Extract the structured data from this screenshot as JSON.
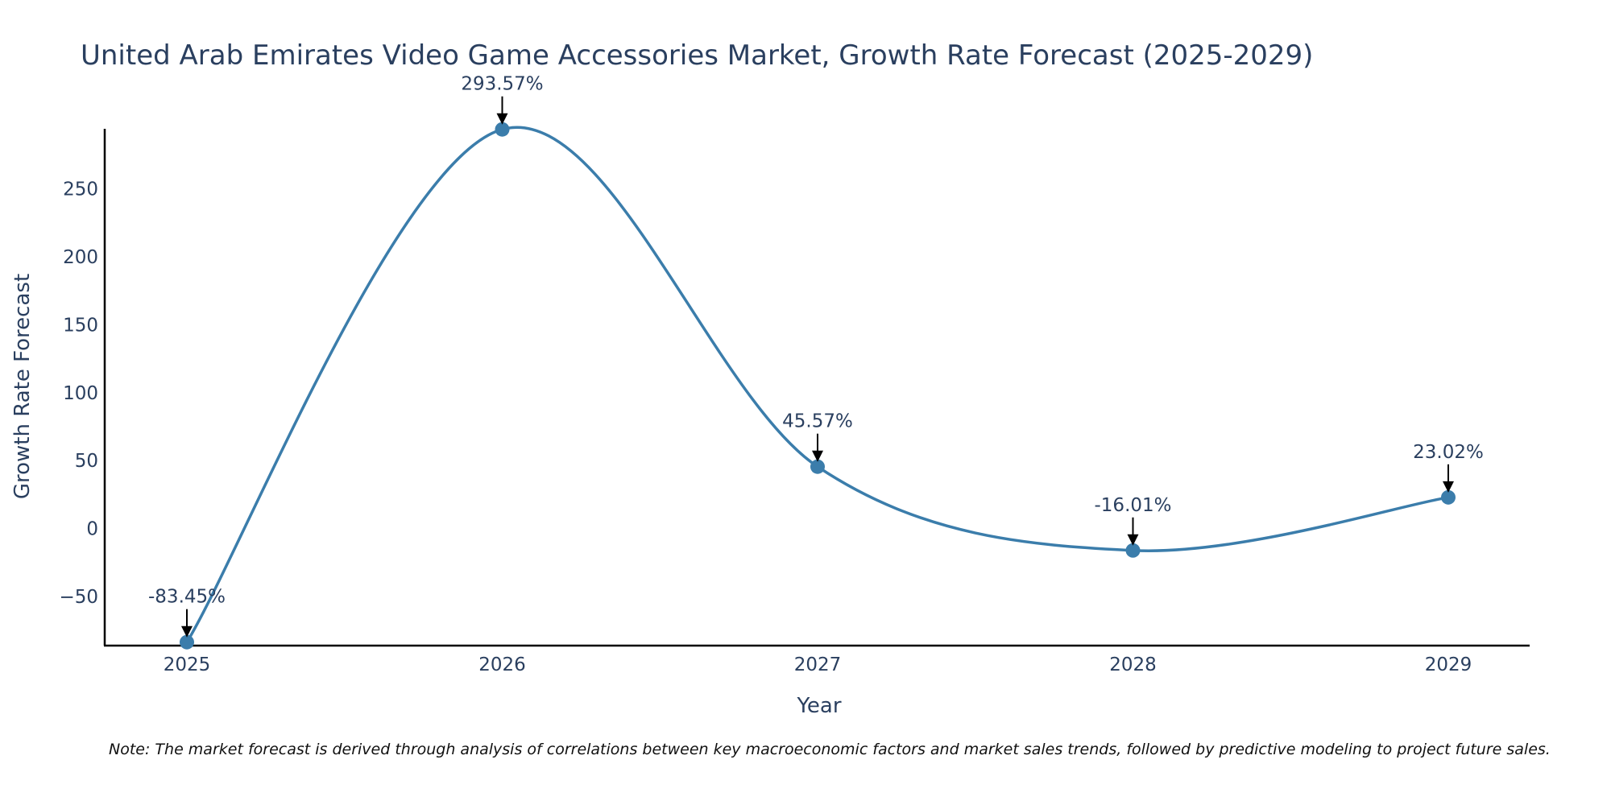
{
  "chart_data": {
    "type": "line",
    "title": "United Arab Emirates Video Game Accessories Market, Growth Rate Forecast (2025-2029)",
    "xlabel": "Year",
    "ylabel": "Growth Rate Forecast",
    "x": [
      "2025",
      "2026",
      "2027",
      "2028",
      "2029"
    ],
    "values": [
      -83.45,
      293.57,
      45.57,
      -16.01,
      23.02
    ],
    "data_labels": [
      "-83.45%",
      "293.57%",
      "45.57%",
      "-16.01%",
      "23.02%"
    ],
    "yticks": [
      -50,
      0,
      50,
      100,
      150,
      200,
      250
    ],
    "ytick_labels": [
      "−50",
      "0",
      "50",
      "100",
      "150",
      "200",
      "250"
    ],
    "ylim": [
      -86,
      294
    ],
    "line_color": "#3b7dab",
    "grid": false,
    "smooth": true
  },
  "note": "Note: The market forecast is derived through analysis of correlations between key macroeconomic factors and market sales trends, followed by predictive modeling to project future sales."
}
